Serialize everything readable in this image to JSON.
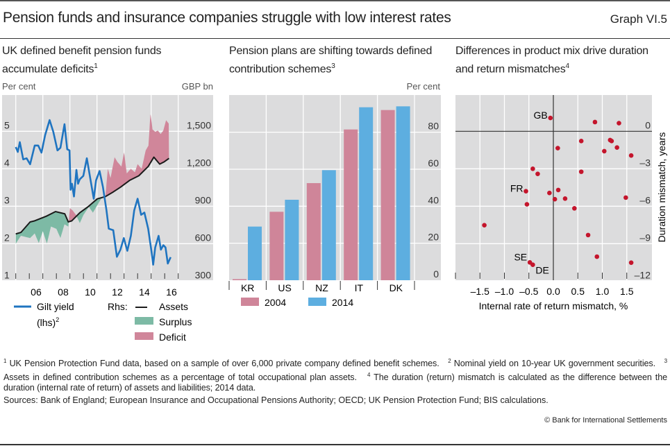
{
  "header": {
    "title": "Pension funds and insurance companies struggle with low interest rates",
    "graph_number": "Graph VI.5"
  },
  "panels": [
    {
      "title": "UK defined benefit pension funds accumulate deficits",
      "footnote_ref": "1",
      "left_unit": "Per cent",
      "right_unit": "GBP bn"
    },
    {
      "title": "Pension plans are shifting towards defined contribution schemes",
      "footnote_ref": "3",
      "right_unit": "Per cent"
    },
    {
      "title": "Differences in product mix drive duration and return mismatches",
      "footnote_ref": "4"
    }
  ],
  "legend_left": {
    "gilt": "Gilt yield",
    "gilt_sub": "(lhs)",
    "gilt_ref": "2",
    "rhs": "Rhs:",
    "assets": "Assets",
    "surplus": "Surplus",
    "deficit": "Deficit"
  },
  "colors": {
    "plot_bg": "#dcdcdd",
    "gilt": "#1f74c0",
    "assets": "#1a1a1a",
    "surplus": "#7dbaa5",
    "deficit": "#d0869a",
    "bar_2004": "#cf8599",
    "bar_2014": "#5daee0",
    "dot": "#c4152c"
  },
  "chart_data": [
    {
      "type": "line",
      "title": "UK defined benefit pension funds accumulate deficits",
      "left_axis": {
        "label": "Per cent",
        "range": [
          1,
          5
        ],
        "ticks": [
          "1",
          "2",
          "3",
          "4",
          "5"
        ]
      },
      "right_axis": {
        "label": "GBP bn",
        "range": [
          300,
          1500
        ],
        "ticks": [
          "300",
          "600",
          "900",
          "1,200",
          "1,500"
        ]
      },
      "x_range": [
        2004,
        2017
      ],
      "x_ticks": [
        {
          "label": "06",
          "year": 2006.5
        },
        {
          "label": "08",
          "year": 2008.5
        },
        {
          "label": "10",
          "year": 2010.5
        },
        {
          "label": "12",
          "year": 2012.5
        },
        {
          "label": "14",
          "year": 2014.5
        },
        {
          "label": "16",
          "year": 2016.5
        }
      ],
      "grid": true,
      "series": [
        {
          "name": "Gilt yield (lhs)",
          "axis": "left",
          "points": [
            [
              2005.0,
              4.58
            ],
            [
              2005.15,
              4.45
            ],
            [
              2005.3,
              4.71
            ],
            [
              2005.55,
              4.25
            ],
            [
              2005.8,
              4.28
            ],
            [
              2006.06,
              4.12
            ],
            [
              2006.4,
              4.62
            ],
            [
              2006.66,
              4.62
            ],
            [
              2006.9,
              4.43
            ],
            [
              2007.17,
              4.9
            ],
            [
              2007.5,
              5.3
            ],
            [
              2007.77,
              4.99
            ],
            [
              2008.08,
              4.49
            ],
            [
              2008.3,
              4.56
            ],
            [
              2008.6,
              5.19
            ],
            [
              2008.8,
              4.52
            ],
            [
              2008.97,
              4.49
            ],
            [
              2009.05,
              3.44
            ],
            [
              2009.15,
              3.6
            ],
            [
              2009.3,
              3.26
            ],
            [
              2009.48,
              3.97
            ],
            [
              2009.6,
              3.6
            ],
            [
              2009.73,
              3.72
            ],
            [
              2009.99,
              3.81
            ],
            [
              2010.25,
              4.28
            ],
            [
              2010.5,
              3.75
            ],
            [
              2010.76,
              3.2
            ],
            [
              2010.93,
              3.69
            ],
            [
              2011.19,
              3.94
            ],
            [
              2011.44,
              3.51
            ],
            [
              2011.7,
              2.89
            ],
            [
              2011.87,
              2.4
            ],
            [
              2012.2,
              2.36
            ],
            [
              2012.47,
              1.65
            ],
            [
              2012.73,
              1.84
            ],
            [
              2012.98,
              2.15
            ],
            [
              2013.24,
              1.81
            ],
            [
              2013.5,
              2.21
            ],
            [
              2013.75,
              2.89
            ],
            [
              2014.0,
              3.2
            ],
            [
              2014.26,
              2.77
            ],
            [
              2014.5,
              2.83
            ],
            [
              2014.78,
              2.4
            ],
            [
              2015.03,
              1.78
            ],
            [
              2015.15,
              1.44
            ],
            [
              2015.3,
              1.9
            ],
            [
              2015.55,
              2.21
            ],
            [
              2015.72,
              1.84
            ],
            [
              2015.9,
              1.96
            ],
            [
              2016.06,
              1.9
            ],
            [
              2016.23,
              1.47
            ],
            [
              2016.44,
              1.64
            ]
          ]
        },
        {
          "name": "Assets",
          "axis": "right",
          "points": [
            [
              2005.0,
              678
            ],
            [
              2005.38,
              690
            ],
            [
              2006.06,
              774
            ],
            [
              2006.4,
              783
            ],
            [
              2007.26,
              820
            ],
            [
              2007.94,
              857
            ],
            [
              2008.62,
              839
            ],
            [
              2008.88,
              774
            ],
            [
              2009.14,
              783
            ],
            [
              2009.73,
              848
            ],
            [
              2010.33,
              895
            ],
            [
              2011.02,
              959
            ],
            [
              2011.62,
              977
            ],
            [
              2012.21,
              1015
            ],
            [
              2012.73,
              1052
            ],
            [
              2013.41,
              1107
            ],
            [
              2014.09,
              1144
            ],
            [
              2014.78,
              1218
            ],
            [
              2015.2,
              1293
            ],
            [
              2015.63,
              1237
            ],
            [
              2015.97,
              1256
            ],
            [
              2016.32,
              1283
            ]
          ]
        }
      ],
      "fill": {
        "positive_name": "Surplus",
        "negative_name": "Deficit",
        "axis": "right",
        "other_edge": [
          [
            2005.0,
            600
          ],
          [
            2005.38,
            663
          ],
          [
            2006.06,
            645
          ],
          [
            2006.4,
            682
          ],
          [
            2006.7,
            605
          ],
          [
            2007.0,
            700
          ],
          [
            2007.3,
            601
          ],
          [
            2007.6,
            737
          ],
          [
            2008.0,
            719
          ],
          [
            2008.3,
            645
          ],
          [
            2008.6,
            755
          ],
          [
            2008.88,
            737
          ],
          [
            2009.0,
            885
          ],
          [
            2009.2,
            866
          ],
          [
            2009.45,
            830
          ],
          [
            2009.73,
            765
          ],
          [
            2010.0,
            830
          ],
          [
            2010.4,
            895
          ],
          [
            2010.7,
            848
          ],
          [
            2011.0,
            904
          ],
          [
            2011.3,
            959
          ],
          [
            2011.62,
            977
          ],
          [
            2011.8,
            1200
          ],
          [
            2012.0,
            1126
          ],
          [
            2012.3,
            1293
          ],
          [
            2012.5,
            1256
          ],
          [
            2012.8,
            1218
          ],
          [
            2013.0,
            1330
          ],
          [
            2013.2,
            1163
          ],
          [
            2013.5,
            1200
          ],
          [
            2013.8,
            1172
          ],
          [
            2014.0,
            1237
          ],
          [
            2014.3,
            1200
          ],
          [
            2014.6,
            1348
          ],
          [
            2014.8,
            1385
          ],
          [
            2014.95,
            1644
          ],
          [
            2015.1,
            1515
          ],
          [
            2015.3,
            1496
          ],
          [
            2015.5,
            1506
          ],
          [
            2015.7,
            1478
          ],
          [
            2015.9,
            1506
          ],
          [
            2016.1,
            1589
          ],
          [
            2016.3,
            1561
          ],
          [
            2016.32,
            1283
          ]
        ]
      },
      "legend": "bottom"
    },
    {
      "type": "bar",
      "title": "Pension plans are shifting towards defined contribution schemes",
      "ylabel": "Per cent",
      "categories": [
        "KR",
        "US",
        "NZ",
        "IT",
        "DK"
      ],
      "series": [
        {
          "name": "2004",
          "values": [
            0.6,
            37,
            52.5,
            81.5,
            92
          ]
        },
        {
          "name": "2014",
          "values": [
            29,
            43.5,
            59.5,
            93.5,
            94
          ]
        }
      ],
      "ylim": [
        0,
        100
      ],
      "y_ticks": [
        "0",
        "20",
        "40",
        "60",
        "80"
      ],
      "grid": true,
      "legend": "bottom"
    },
    {
      "type": "scatter",
      "title": "Differences in product mix drive duration and return mismatches",
      "xlabel": "Internal rate of return mismatch, %",
      "ylabel": "Duration mismatch, years",
      "xlim": [
        -2.0,
        2.0
      ],
      "ylim": [
        -12,
        2.9
      ],
      "x_ticks": [
        "–1.5",
        "–1.0",
        "–0.5",
        "0.0",
        "0.5",
        "1.0",
        "1.5"
      ],
      "y_ticks": [
        "0",
        "–3",
        "–6",
        "–9",
        "–12"
      ],
      "grid": true,
      "points": [
        {
          "x": -0.06,
          "y": 1.07,
          "label": "GB"
        },
        {
          "x": 0.85,
          "y": 0.74
        },
        {
          "x": 1.34,
          "y": 0.65
        },
        {
          "x": 0.57,
          "y": -0.78
        },
        {
          "x": 1.16,
          "y": -0.7
        },
        {
          "x": 1.19,
          "y": -0.78
        },
        {
          "x": 1.3,
          "y": -1.3
        },
        {
          "x": 1.04,
          "y": -1.59
        },
        {
          "x": 0.09,
          "y": -1.35
        },
        {
          "x": 1.59,
          "y": -1.94
        },
        {
          "x": -0.42,
          "y": -3.0
        },
        {
          "x": -0.32,
          "y": -3.41
        },
        {
          "x": 0.57,
          "y": -3.24
        },
        {
          "x": -0.56,
          "y": -4.8,
          "label": "FR"
        },
        {
          "x": -0.08,
          "y": -4.94
        },
        {
          "x": 0.1,
          "y": -4.7
        },
        {
          "x": 0.03,
          "y": -5.44
        },
        {
          "x": 0.24,
          "y": -5.39
        },
        {
          "x": 1.48,
          "y": -5.31
        },
        {
          "x": -0.54,
          "y": -5.85
        },
        {
          "x": 0.43,
          "y": -6.17
        },
        {
          "x": -1.41,
          "y": -7.52
        },
        {
          "x": 0.71,
          "y": -8.31
        },
        {
          "x": 0.89,
          "y": -10.04
        },
        {
          "x": -0.48,
          "y": -10.5,
          "label": "SE"
        },
        {
          "x": -0.42,
          "y": -10.69,
          "label": "DE"
        },
        {
          "x": 1.59,
          "y": -10.52
        }
      ]
    }
  ],
  "footnotes": [
    {
      "num": "1",
      "text": "UK Pension Protection Fund data, based on a sample of over 6,000 private company defined benefit schemes."
    },
    {
      "num": "2",
      "text": "Nominal yield on 10-year UK government securities."
    },
    {
      "num": "3",
      "text": "Assets in defined contribution schemes as a percentage of total occupational plan assets."
    },
    {
      "num": "4",
      "text": "The duration (return) mismatch is calculated as the difference between the duration (internal rate of return) of assets and liabilities; 2014 data."
    }
  ],
  "sources": "Sources: Bank of England; European Insurance and Occupational Pensions Authority; OECD; UK Pension Protection Fund; BIS calculations.",
  "copyright": "© Bank for International Settlements"
}
